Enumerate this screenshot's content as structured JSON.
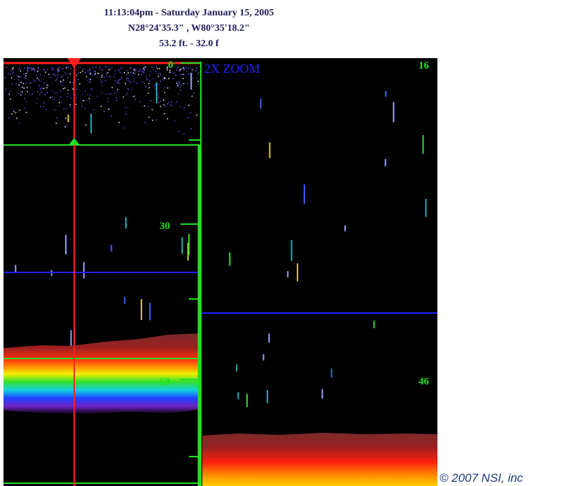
{
  "header": {
    "time_line": "11:13:04pm - Saturday January 15, 2005",
    "position_line": "N28°24'35.3\" , W80°35'18.2\"",
    "depth_line": "53.2 ft. - 32.0 f"
  },
  "left_panel": {
    "depth_labels": [
      "0",
      "30",
      "60"
    ]
  },
  "right_panel": {
    "zoom_label": "2X ZOOM",
    "depth_labels": [
      "16",
      "46"
    ]
  },
  "footer": {
    "copyright": "© 2007 NSI, inc"
  }
}
